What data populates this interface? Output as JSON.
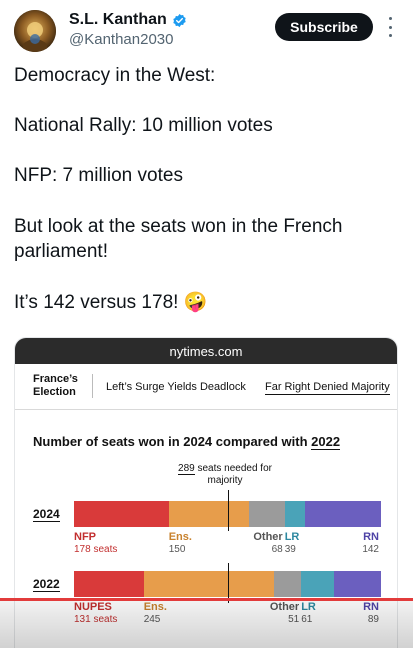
{
  "user": {
    "name": "S.L. Kanthan",
    "handle": "@Kanthan2030"
  },
  "subscribe_label": "Subscribe",
  "tweet": {
    "lines": [
      "Democracy in the West:",
      "National Rally: 10 million votes",
      "NFP: 7 million votes",
      "But look at the seats won in the French",
      "parliament!",
      "It’s 142 versus 178! 🤪"
    ]
  },
  "embed": {
    "source": "nytimes.com",
    "nav": {
      "brand": "France’s Election",
      "link1": "Left’s Surge Yields Deadlock",
      "link2": "Far Right Denied Majority"
    },
    "chart_title_prefix": "Number of seats won in 2024 compared with ",
    "chart_title_year": "2022",
    "majority_count": "289",
    "majority_text_1": " seats needed for",
    "majority_text_2": "majority"
  },
  "chart_data": {
    "type": "bar",
    "title": "Number of seats won in 2024 compared with 2022",
    "annotation": "289 seats needed for majority",
    "majority": 289,
    "rows": [
      {
        "year": "2024",
        "segments": [
          {
            "name": "NFP",
            "value": 178,
            "value_label": "178 seats",
            "color": "#d93a3a"
          },
          {
            "name": "Ens.",
            "value": 150,
            "value_label": "150",
            "color": "#e79d4b"
          },
          {
            "name": "Other",
            "value": 68,
            "value_label": "68",
            "color": "#9b9b9b"
          },
          {
            "name": "LR",
            "value": 39,
            "value_label": "39",
            "color": "#4aa3b8"
          },
          {
            "name": "RN",
            "value": 142,
            "value_label": "142",
            "color": "#6b5fbf"
          }
        ]
      },
      {
        "year": "2022",
        "segments": [
          {
            "name": "NUPES",
            "value": 131,
            "value_label": "131 seats",
            "color": "#d93a3a"
          },
          {
            "name": "Ens.",
            "value": 245,
            "value_label": "245",
            "color": "#e79d4b"
          },
          {
            "name": "Other",
            "value": 51,
            "value_label": "51",
            "color": "#9b9b9b"
          },
          {
            "name": "LR",
            "value": 61,
            "value_label": "61",
            "color": "#4aa3b8"
          },
          {
            "name": "RN",
            "value": 89,
            "value_label": "89",
            "color": "#6b5fbf"
          }
        ]
      }
    ]
  },
  "colors": {
    "nfp_red": "#d93a3a",
    "ens_orange": "#e79d4b",
    "other_gray": "#9b9b9b",
    "lr_teal": "#4aa3b8",
    "rn_purple": "#6b5fbf",
    "verified_blue": "#1d9bf0",
    "progress_red": "#e23b3b"
  },
  "icons": {
    "verified": "verified-badge-icon",
    "more": "more-options-icon"
  },
  "video": {
    "progress": 1.0
  }
}
